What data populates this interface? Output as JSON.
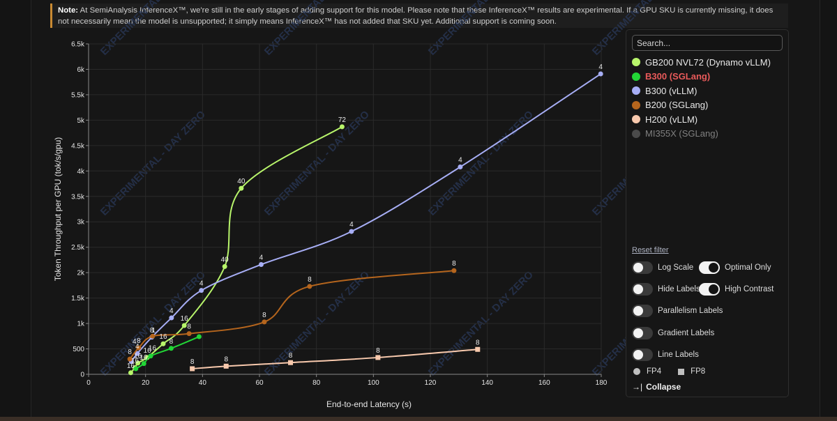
{
  "note": {
    "label": "Note:",
    "text": "At SemiAnalysis InferenceX™, we're still in the early stages of adding support for this model. Please note that these InferenceX™ results are experimental. If a GPU SKU is currently missing, it does not necessarily mean the model is unsupported; it simply means InferenceX™ has not added that SKU yet. Additional support is coming soon."
  },
  "watermark": "EXPERIMENTAL - DAY ZERO",
  "chart_data": {
    "type": "line",
    "xlabel": "End-to-end Latency (s)",
    "ylabel": "Token Throughput per GPU (tok/s/gpu)",
    "xlim": [
      0,
      180
    ],
    "ylim": [
      0,
      6500
    ],
    "x_ticks": [
      0,
      20,
      40,
      60,
      80,
      100,
      120,
      140,
      160,
      180
    ],
    "x_tick_labels": [
      "0",
      "20",
      "40",
      "60",
      "80",
      "100",
      "120",
      "140",
      "160",
      "180"
    ],
    "y_ticks": [
      0,
      500,
      1000,
      1500,
      2000,
      2500,
      3000,
      3500,
      4000,
      4500,
      5000,
      5500,
      6000,
      6500
    ],
    "y_tick_labels": [
      "0",
      "500",
      "1k",
      "1.5k",
      "2k",
      "2.5k",
      "3k",
      "3.5k",
      "4k",
      "4.5k",
      "5k",
      "5.5k",
      "6k",
      "6.5k"
    ],
    "grid": true,
    "legend_position": "right",
    "series": [
      {
        "name": "GB200 NVL72 (Dynamo vLLM)",
        "color": "#b8f56b",
        "marker": "circle",
        "points": [
          [
            14.8,
            30
          ],
          [
            16.3,
            130
          ],
          [
            17.3,
            220
          ],
          [
            20.6,
            330
          ],
          [
            26.2,
            600
          ],
          [
            33.6,
            960
          ],
          [
            47.8,
            2120
          ],
          [
            53.6,
            3660
          ],
          [
            89,
            4870
          ]
        ],
        "labels": [
          "16",
          "16",
          "16",
          "16",
          "16",
          "16",
          "40",
          "40",
          "72"
        ]
      },
      {
        "name": "B300 (SGLang)",
        "color": "#22d636",
        "marker": "circle",
        "points": [
          [
            16.6,
            110
          ],
          [
            19.4,
            210
          ],
          [
            21.8,
            360
          ],
          [
            29,
            510
          ],
          [
            38.8,
            740
          ]
        ],
        "labels": [
          "",
          "",
          "",
          "8",
          ""
        ]
      },
      {
        "name": "B300 (vLLM)",
        "color": "#a7aef5",
        "marker": "circle",
        "points": [
          [
            15,
            250
          ],
          [
            17.1,
            410
          ],
          [
            22.2,
            730
          ],
          [
            29.1,
            1110
          ],
          [
            39.6,
            1650
          ],
          [
            60.6,
            2160
          ],
          [
            92.3,
            2810
          ],
          [
            130.5,
            4080
          ],
          [
            179.8,
            5910
          ]
        ],
        "labels": [
          "",
          "4",
          "8",
          "4",
          "4",
          "4",
          "4",
          "4",
          "4"
        ]
      },
      {
        "name": "B200 (SGLang)",
        "color": "#b5651d",
        "marker": "circle",
        "points": [
          [
            14.5,
            300
          ],
          [
            17.6,
            520
          ],
          [
            22.5,
            750
          ],
          [
            35.3,
            800
          ],
          [
            61.7,
            1030
          ],
          [
            77.6,
            1730
          ],
          [
            128.3,
            2040
          ]
        ],
        "labels": [
          "8",
          "8",
          "",
          "8",
          "8",
          "8",
          "8"
        ]
      },
      {
        "name": "H200 (vLLM)",
        "color": "#f8c9ad",
        "marker": "square",
        "points": [
          [
            36.4,
            110
          ],
          [
            48.3,
            160
          ],
          [
            70.9,
            230
          ],
          [
            101.6,
            330
          ],
          [
            136.6,
            490
          ]
        ],
        "labels": [
          "8",
          "8",
          "8",
          "8",
          "8"
        ]
      },
      {
        "name": "MI355X (SGLang)",
        "color": "#555555",
        "marker": "circle",
        "points": [],
        "labels": []
      }
    ],
    "extra_labels": [
      {
        "x": 16.1,
        "y": 600,
        "text": "4"
      },
      {
        "x": 22.8,
        "y": 820,
        "text": "1"
      },
      {
        "x": 19.3,
        "y": 290,
        "text": "16"
      },
      {
        "x": 22.4,
        "y": 470,
        "text": "16"
      }
    ]
  },
  "legend": {
    "search_placeholder": "Search...",
    "items": [
      {
        "label": "GB200 NVL72 (Dynamo vLLM)",
        "color": "#b8f56b",
        "state": "normal"
      },
      {
        "label": "B300 (SGLang)",
        "color": "#22d636",
        "state": "selected"
      },
      {
        "label": "B300 (vLLM)",
        "color": "#a7aef5",
        "state": "normal"
      },
      {
        "label": "B200 (SGLang)",
        "color": "#b5651d",
        "state": "normal"
      },
      {
        "label": "H200 (vLLM)",
        "color": "#f8c9ad",
        "state": "normal"
      },
      {
        "label": "MI355X (SGLang)",
        "color": "#4a4a4a",
        "state": "disabled"
      }
    ],
    "reset_label": "Reset filter",
    "toggles": {
      "log_scale": {
        "label": "Log Scale",
        "on": false
      },
      "optimal_only": {
        "label": "Optimal Only",
        "on": true
      },
      "hide_labels": {
        "label": "Hide Labels",
        "on": false
      },
      "high_contrast": {
        "label": "High Contrast",
        "on": true
      },
      "parallelism_labels": {
        "label": "Parallelism Labels",
        "on": false
      },
      "gradient_labels": {
        "label": "Gradient Labels",
        "on": false
      },
      "line_labels": {
        "label": "Line Labels",
        "on": false
      }
    },
    "fp4_label": "FP4",
    "fp8_label": "FP8",
    "collapse_label": "Collapse"
  }
}
